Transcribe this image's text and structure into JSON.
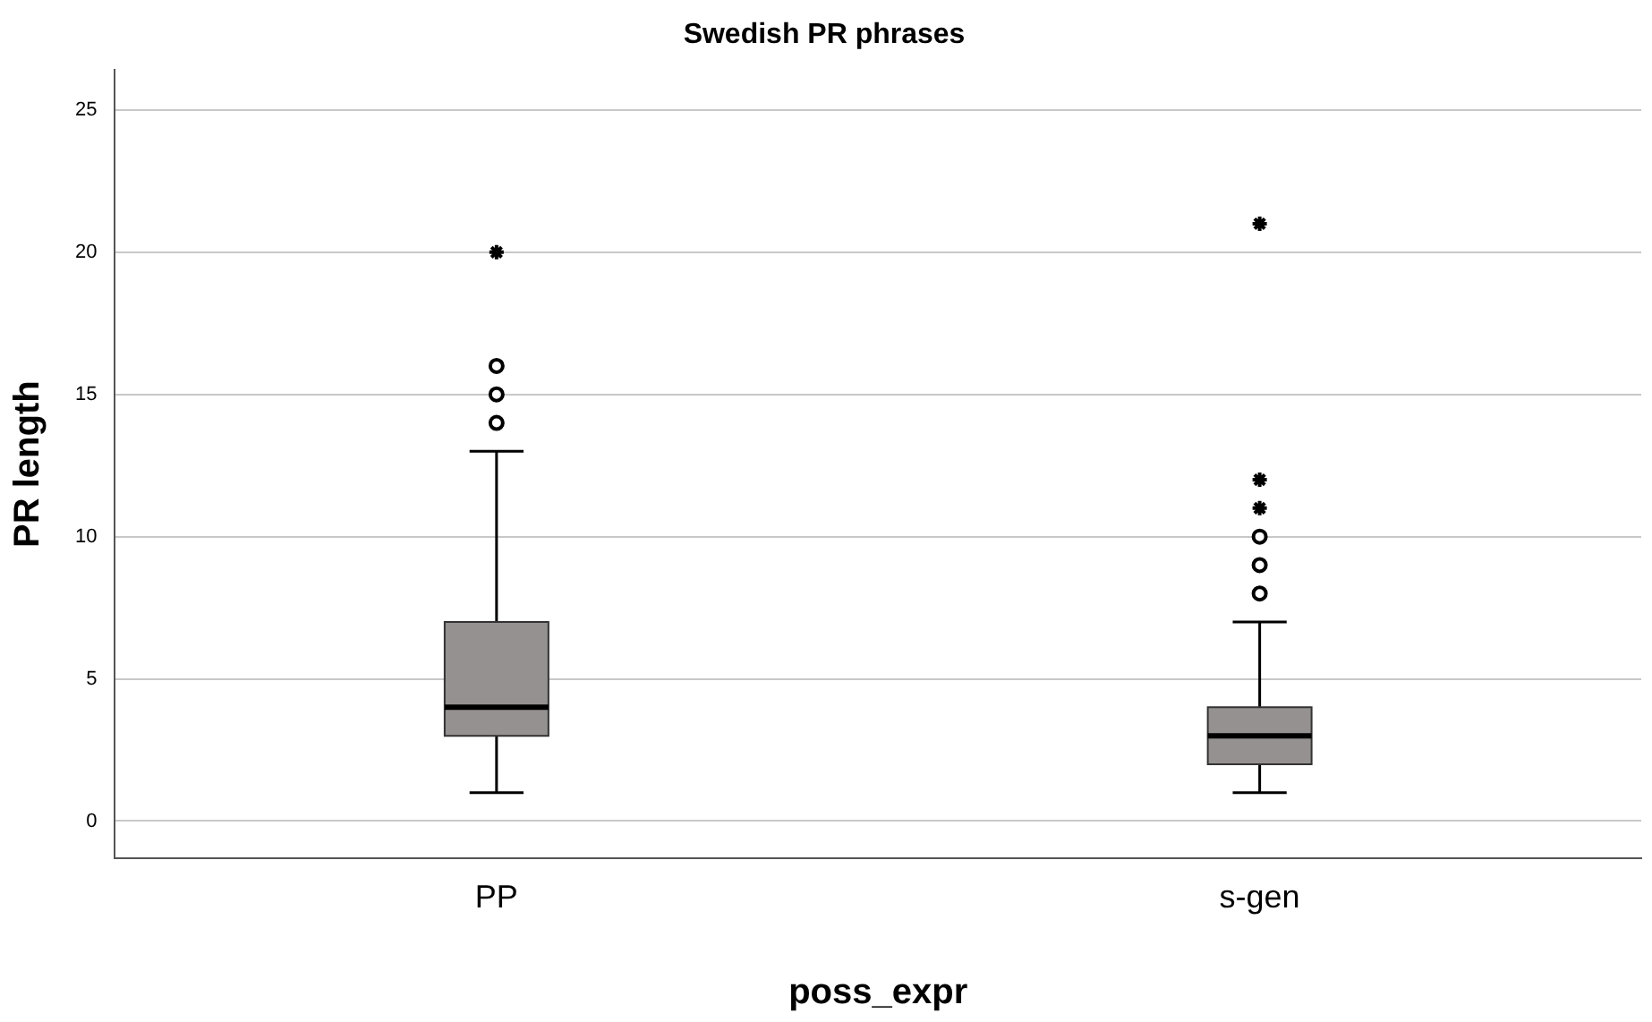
{
  "chart_data": {
    "type": "box",
    "title": "Swedish PR phrases",
    "xlabel": "poss_expr",
    "ylabel": "PR length",
    "categories": [
      "PP",
      "s-gen"
    ],
    "color": "#969191",
    "boxes": [
      {
        "low": 1,
        "q1": 3,
        "median": 4,
        "q3": 7,
        "high": 13,
        "outliers": [
          14,
          15,
          16,
          20
        ]
      },
      {
        "low": 1,
        "q1": 2,
        "median": 3,
        "q3": 4,
        "high": 7,
        "outliers": [
          8,
          9,
          10,
          11,
          12,
          21
        ]
      }
    ],
    "ylim": [
      -1.3,
      26.4
    ],
    "yticks": [
      0,
      5,
      10,
      15,
      20,
      25
    ],
    "grid": "y",
    "legend": false
  }
}
